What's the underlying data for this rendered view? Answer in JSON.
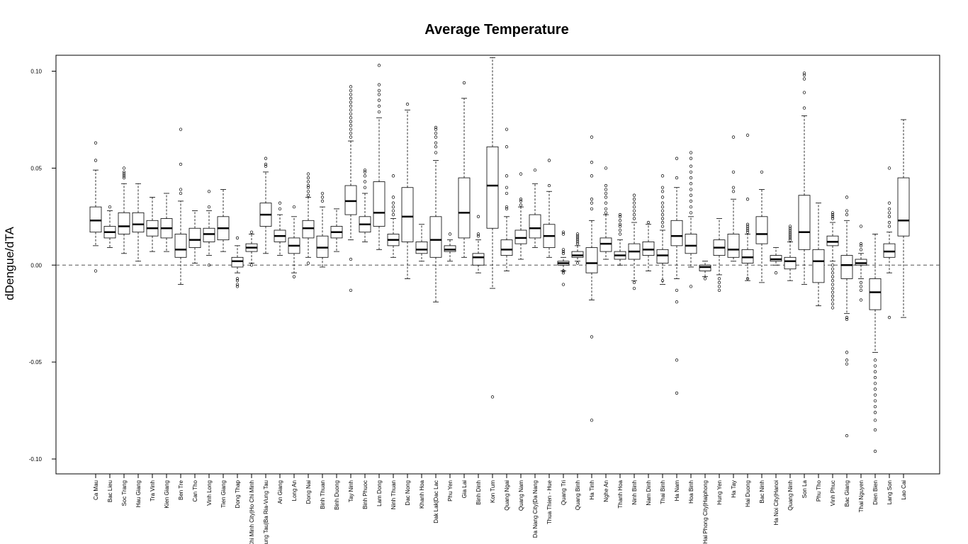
{
  "chart_data": {
    "type": "boxplot",
    "title": "Average Temperature",
    "xlabel": "",
    "ylabel": "dDengue/dTA",
    "ylim": [
      -0.11,
      0.107
    ],
    "yticks": [
      -0.1,
      -0.05,
      0.0,
      0.05,
      0.1
    ],
    "ytick_labels": [
      "-0.10",
      "-0.05",
      "0.00",
      "0.05",
      "0.10"
    ],
    "reference_line": 0.0,
    "categories": [
      "Ca Mau",
      "Bac Lieu",
      "Soc Trang",
      "Hau Giang",
      "Tra Vinh",
      "Kien Giang",
      "Ben Tre",
      "Can Tho",
      "Vinh Long",
      "Tien Giang",
      "Dong Thap",
      "Ho Chi Minh City|Ho Chi Minh",
      "Vung Tau|Ba Ria-Vung Tau",
      "An Giang",
      "Long An",
      "Dong Nai",
      "Binh Thuan",
      "Binh Duong",
      "Tay Ninh",
      "Binh Phuoc",
      "Lam Dong",
      "Ninh Thuan",
      "Dac Nong",
      "Khanh Hoa",
      "Dak Lak|Dac Lac",
      "Phu Yen",
      "Gia Lai",
      "Binh Dinh",
      "Kon Tum",
      "Quang Ngai",
      "Quang Nam",
      "Da Nang City|Da Nang",
      "Thua Thien - Hue",
      "Quang Tri",
      "Quang Binh",
      "Ha Tinh",
      "Nghe An",
      "Thanh Hoa",
      "Ninh Binh",
      "Nam Dinh",
      "Thai Binh",
      "Ha Nam",
      "Hoa Binh",
      "Hai Phong City|Haiphong",
      "Hung Yen",
      "Ha Tay",
      "Hai Duong",
      "Bac Ninh",
      "Ha Noi City|Hanoi",
      "Quang Ninh",
      "Son La",
      "Phu Tho",
      "Vinh Phuc",
      "Bac Giang",
      "Thai Nguyen",
      "Dien Bien",
      "Lang Son",
      "Lao Cai"
    ],
    "boxes": [
      {
        "wl": 0.01,
        "q1": 0.017,
        "med": 0.023,
        "q3": 0.03,
        "wh": 0.049,
        "out": [
          0.063,
          0.054,
          -0.003
        ]
      },
      {
        "wl": 0.009,
        "q1": 0.014,
        "med": 0.017,
        "q3": 0.02,
        "wh": 0.028,
        "out": [
          0.03
        ]
      },
      {
        "wl": 0.006,
        "q1": 0.016,
        "med": 0.02,
        "q3": 0.027,
        "wh": 0.042,
        "out": [
          0.045,
          0.046,
          0.047,
          0.048,
          0.05
        ]
      },
      {
        "wl": 0.002,
        "q1": 0.017,
        "med": 0.021,
        "q3": 0.027,
        "wh": 0.042,
        "out": []
      },
      {
        "wl": 0.007,
        "q1": 0.015,
        "med": 0.019,
        "q3": 0.023,
        "wh": 0.035,
        "out": []
      },
      {
        "wl": 0.007,
        "q1": 0.014,
        "med": 0.019,
        "q3": 0.024,
        "wh": 0.037,
        "out": []
      },
      {
        "wl": -0.01,
        "q1": 0.004,
        "med": 0.008,
        "q3": 0.016,
        "wh": 0.033,
        "out": [
          0.037,
          0.039,
          0.052,
          0.07
        ]
      },
      {
        "wl": 0.001,
        "q1": 0.009,
        "med": 0.013,
        "q3": 0.019,
        "wh": 0.028,
        "out": []
      },
      {
        "wl": 0.005,
        "q1": 0.012,
        "med": 0.016,
        "q3": 0.019,
        "wh": 0.028,
        "out": [
          0.03,
          0.038,
          0.0
        ]
      },
      {
        "wl": 0.007,
        "q1": 0.013,
        "med": 0.019,
        "q3": 0.025,
        "wh": 0.039,
        "out": []
      },
      {
        "wl": -0.004,
        "q1": -0.001,
        "med": 0.002,
        "q3": 0.004,
        "wh": 0.01,
        "out": [
          0.014,
          -0.007,
          -0.008,
          -0.01,
          -0.011
        ]
      },
      {
        "wl": 0.001,
        "q1": 0.007,
        "med": 0.009,
        "q3": 0.011,
        "wh": 0.016,
        "out": [
          0.017,
          0.0
        ]
      },
      {
        "wl": 0.006,
        "q1": 0.02,
        "med": 0.026,
        "q3": 0.032,
        "wh": 0.048,
        "out": [
          0.051,
          0.052,
          0.055
        ]
      },
      {
        "wl": 0.005,
        "q1": 0.012,
        "med": 0.015,
        "q3": 0.018,
        "wh": 0.026,
        "out": [
          0.029,
          0.032
        ]
      },
      {
        "wl": -0.004,
        "q1": 0.006,
        "med": 0.01,
        "q3": 0.014,
        "wh": 0.025,
        "out": [
          0.03,
          -0.006
        ]
      },
      {
        "wl": 0.004,
        "q1": 0.014,
        "med": 0.019,
        "q3": 0.023,
        "wh": 0.035,
        "out": [
          0.036,
          0.038,
          0.04,
          0.041,
          0.043,
          0.045,
          0.047,
          0.001
        ]
      },
      {
        "wl": -0.001,
        "q1": 0.004,
        "med": 0.009,
        "q3": 0.015,
        "wh": 0.03,
        "out": [
          0.033,
          0.035,
          0.037
        ]
      },
      {
        "wl": 0.007,
        "q1": 0.014,
        "med": 0.017,
        "q3": 0.02,
        "wh": 0.029,
        "out": []
      },
      {
        "wl": 0.013,
        "q1": 0.026,
        "med": 0.033,
        "q3": 0.041,
        "wh": 0.064,
        "out": [
          0.066,
          0.068,
          0.07,
          0.072,
          0.074,
          0.076,
          0.078,
          0.08,
          0.082,
          0.084,
          0.086,
          0.088,
          0.09,
          0.092,
          0.003,
          -0.013
        ]
      },
      {
        "wl": 0.012,
        "q1": 0.017,
        "med": 0.021,
        "q3": 0.025,
        "wh": 0.037,
        "out": [
          0.04,
          0.043,
          0.046,
          0.048,
          0.049
        ]
      },
      {
        "wl": 0.008,
        "q1": 0.02,
        "med": 0.027,
        "q3": 0.043,
        "wh": 0.076,
        "out": [
          0.079,
          0.082,
          0.085,
          0.088,
          0.09,
          0.093,
          0.103
        ]
      },
      {
        "wl": 0.004,
        "q1": 0.01,
        "med": 0.013,
        "q3": 0.016,
        "wh": 0.024,
        "out": [
          0.026,
          0.028,
          0.03,
          0.032,
          0.035,
          0.046
        ]
      },
      {
        "wl": -0.007,
        "q1": 0.012,
        "med": 0.025,
        "q3": 0.04,
        "wh": 0.08,
        "out": [
          0.083
        ]
      },
      {
        "wl": 0.002,
        "q1": 0.006,
        "med": 0.008,
        "q3": 0.012,
        "wh": 0.021,
        "out": []
      },
      {
        "wl": -0.019,
        "q1": 0.004,
        "med": 0.013,
        "q3": 0.025,
        "wh": 0.054,
        "out": [
          0.058,
          0.061,
          0.063,
          0.066,
          0.068,
          0.07,
          0.071
        ]
      },
      {
        "wl": 0.002,
        "q1": 0.007,
        "med": 0.008,
        "q3": 0.01,
        "wh": 0.013,
        "out": [
          0.016
        ]
      },
      {
        "wl": 0.004,
        "q1": 0.014,
        "med": 0.027,
        "q3": 0.045,
        "wh": 0.086,
        "out": [
          0.094
        ]
      },
      {
        "wl": -0.004,
        "q1": 0.0,
        "med": 0.004,
        "q3": 0.006,
        "wh": 0.013,
        "out": [
          0.015,
          0.016,
          0.025
        ]
      },
      {
        "wl": -0.012,
        "q1": 0.019,
        "med": 0.041,
        "q3": 0.061,
        "wh": 0.107,
        "out": [
          -0.068
        ]
      },
      {
        "wl": -0.003,
        "q1": 0.005,
        "med": 0.008,
        "q3": 0.013,
        "wh": 0.025,
        "out": [
          0.029,
          0.03,
          0.037,
          0.04,
          0.046,
          0.061,
          0.07
        ]
      },
      {
        "wl": 0.003,
        "q1": 0.011,
        "med": 0.014,
        "q3": 0.018,
        "wh": 0.03,
        "out": [
          0.031,
          0.033,
          0.034,
          0.047
        ]
      },
      {
        "wl": 0.009,
        "q1": 0.014,
        "med": 0.019,
        "q3": 0.026,
        "wh": 0.042,
        "out": [
          0.049
        ]
      },
      {
        "wl": 0.004,
        "q1": 0.009,
        "med": 0.015,
        "q3": 0.021,
        "wh": 0.038,
        "out": [
          0.041,
          0.054
        ]
      },
      {
        "wl": -0.003,
        "q1": 0.0,
        "med": 0.001,
        "q3": 0.002,
        "wh": 0.004,
        "out": [
          0.006,
          0.007,
          0.008,
          0.016,
          0.017,
          -0.003,
          -0.004,
          -0.01
        ]
      },
      {
        "wl": 0.002,
        "q1": 0.004,
        "med": 0.005,
        "q3": 0.007,
        "wh": 0.01,
        "out": [
          0.011,
          0.012,
          0.013,
          0.014,
          0.015,
          0.016,
          0.001
        ]
      },
      {
        "wl": -0.018,
        "q1": -0.004,
        "med": 0.001,
        "q3": 0.009,
        "wh": 0.023,
        "out": [
          0.029,
          0.032,
          0.034,
          0.046,
          0.053,
          0.066,
          -0.037,
          -0.08
        ]
      },
      {
        "wl": 0.003,
        "q1": 0.007,
        "med": 0.011,
        "q3": 0.014,
        "wh": 0.026,
        "out": [
          0.027,
          0.029,
          0.032,
          0.035,
          0.037,
          0.039,
          0.041,
          0.05
        ]
      },
      {
        "wl": 0.0,
        "q1": 0.003,
        "med": 0.005,
        "q3": 0.007,
        "wh": 0.013,
        "out": [
          0.016,
          0.018,
          0.02,
          0.021,
          0.023,
          0.025,
          0.026
        ]
      },
      {
        "wl": -0.008,
        "q1": 0.003,
        "med": 0.007,
        "q3": 0.011,
        "wh": 0.022,
        "out": [
          0.024,
          0.026,
          0.028,
          0.03,
          0.032,
          0.034,
          0.036,
          -0.009,
          -0.012
        ]
      },
      {
        "wl": -0.003,
        "q1": 0.005,
        "med": 0.008,
        "q3": 0.012,
        "wh": 0.021,
        "out": [
          0.022
        ]
      },
      {
        "wl": -0.01,
        "q1": 0.001,
        "med": 0.005,
        "q3": 0.008,
        "wh": 0.018,
        "out": [
          0.02,
          0.022,
          0.024,
          0.026,
          0.028,
          0.03,
          0.032,
          0.035,
          0.038,
          0.04,
          0.046,
          -0.008
        ]
      },
      {
        "wl": -0.007,
        "q1": 0.01,
        "med": 0.015,
        "q3": 0.023,
        "wh": 0.04,
        "out": [
          0.045,
          0.055,
          -0.013,
          -0.019,
          -0.049,
          -0.066
        ]
      },
      {
        "wl": -0.001,
        "q1": 0.006,
        "med": 0.01,
        "q3": 0.016,
        "wh": 0.025,
        "out": [
          0.027,
          0.03,
          0.033,
          0.036,
          0.039,
          0.042,
          0.045,
          0.048,
          0.051,
          0.055,
          0.058,
          -0.011
        ]
      },
      {
        "wl": -0.006,
        "q1": -0.003,
        "med": -0.001,
        "q3": 0.0,
        "wh": 0.002,
        "out": [
          -0.007
        ]
      },
      {
        "wl": -0.005,
        "q1": 0.005,
        "med": 0.009,
        "q3": 0.013,
        "wh": 0.024,
        "out": [
          -0.007,
          -0.009,
          -0.011,
          -0.013
        ]
      },
      {
        "wl": 0.002,
        "q1": 0.004,
        "med": 0.008,
        "q3": 0.016,
        "wh": 0.034,
        "out": [
          0.038,
          0.04,
          0.048,
          0.066
        ]
      },
      {
        "wl": -0.008,
        "q1": 0.001,
        "med": 0.004,
        "q3": 0.008,
        "wh": 0.016,
        "out": [
          0.017,
          0.018,
          0.019,
          0.02,
          0.021,
          0.034,
          0.067,
          -0.007
        ]
      },
      {
        "wl": -0.009,
        "q1": 0.011,
        "med": 0.016,
        "q3": 0.025,
        "wh": 0.039,
        "out": [
          0.048
        ]
      },
      {
        "wl": 0.0,
        "q1": 0.002,
        "med": 0.003,
        "q3": 0.005,
        "wh": 0.009,
        "out": [
          -0.004
        ]
      },
      {
        "wl": -0.008,
        "q1": -0.002,
        "med": 0.002,
        "q3": 0.004,
        "wh": 0.012,
        "out": [
          0.013,
          0.014,
          0.015,
          0.016,
          0.017,
          0.018,
          0.019,
          0.02
        ]
      },
      {
        "wl": -0.01,
        "q1": 0.008,
        "med": 0.017,
        "q3": 0.036,
        "wh": 0.077,
        "out": [
          0.081,
          0.089,
          0.096,
          0.098,
          0.099
        ]
      },
      {
        "wl": -0.021,
        "q1": -0.009,
        "med": 0.002,
        "q3": 0.008,
        "wh": 0.032,
        "out": []
      },
      {
        "wl": 0.002,
        "q1": 0.01,
        "med": 0.012,
        "q3": 0.015,
        "wh": 0.022,
        "out": [
          0.024,
          0.025,
          0.026,
          0.027,
          0.0,
          -0.002,
          -0.004,
          -0.006,
          -0.008,
          -0.01,
          -0.012,
          -0.014,
          -0.016,
          -0.018,
          -0.02,
          -0.022
        ]
      },
      {
        "wl": -0.025,
        "q1": -0.007,
        "med": 0.0,
        "q3": 0.005,
        "wh": 0.023,
        "out": [
          0.026,
          0.028,
          0.035,
          -0.027,
          -0.028,
          -0.045,
          -0.049,
          -0.051,
          -0.088
        ]
      },
      {
        "wl": -0.007,
        "q1": 0.0,
        "med": 0.001,
        "q3": 0.003,
        "wh": 0.006,
        "out": [
          0.008,
          0.01,
          0.011,
          0.02,
          -0.009,
          -0.011,
          -0.013,
          -0.018
        ]
      },
      {
        "wl": -0.045,
        "q1": -0.023,
        "med": -0.014,
        "q3": -0.007,
        "wh": 0.016,
        "out": [
          -0.049,
          -0.052,
          -0.055,
          -0.058,
          -0.061,
          -0.064,
          -0.067,
          -0.07,
          -0.073,
          -0.076,
          -0.08,
          -0.085,
          -0.096
        ]
      },
      {
        "wl": -0.004,
        "q1": 0.004,
        "med": 0.007,
        "q3": 0.011,
        "wh": 0.017,
        "out": [
          0.02,
          0.022,
          0.025,
          0.027,
          0.029,
          0.032,
          0.05,
          -0.027
        ]
      },
      {
        "wl": -0.027,
        "q1": 0.015,
        "med": 0.023,
        "q3": 0.045,
        "wh": 0.075,
        "out": []
      }
    ]
  }
}
